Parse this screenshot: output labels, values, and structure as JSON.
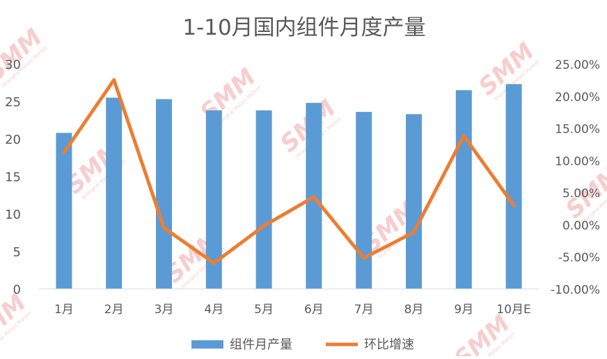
{
  "chart_data": {
    "type": "bar",
    "title": "1-10月国内组件月度产量",
    "categories": [
      "1月",
      "2月",
      "3月",
      "4月",
      "5月",
      "6月",
      "7月",
      "8月",
      "9月",
      "10月E"
    ],
    "series": [
      {
        "name": "组件月产量",
        "type": "bar",
        "axis": "left",
        "color": "#5B9BD5",
        "values": [
          20.8,
          25.5,
          25.3,
          23.8,
          23.8,
          24.8,
          23.6,
          23.3,
          26.5,
          27.3
        ]
      },
      {
        "name": "环比增速",
        "type": "line",
        "axis": "right",
        "color": "#ED7D31",
        "values": [
          0.112,
          0.225,
          -0.005,
          -0.06,
          -0.002,
          0.043,
          -0.052,
          -0.012,
          0.138,
          0.03
        ]
      }
    ],
    "left_axis": {
      "min": 0,
      "max": 30,
      "ticks": [
        {
          "value": 0,
          "label": "0"
        },
        {
          "value": 5,
          "label": "5"
        },
        {
          "value": 10,
          "label": "10"
        },
        {
          "value": 15,
          "label": "15"
        },
        {
          "value": 20,
          "label": "20"
        },
        {
          "value": 25,
          "label": "25"
        },
        {
          "value": 30,
          "label": "30"
        }
      ]
    },
    "right_axis": {
      "min": -0.1,
      "max": 0.25,
      "ticks": [
        {
          "value": -0.1,
          "label": "-10.00%"
        },
        {
          "value": -0.05,
          "label": "-5.00%"
        },
        {
          "value": 0,
          "label": "0.00%"
        },
        {
          "value": 0.05,
          "label": "5.00%"
        },
        {
          "value": 0.1,
          "label": "10.00%"
        },
        {
          "value": 0.15,
          "label": "15.00%"
        },
        {
          "value": 0.2,
          "label": "20.00%"
        },
        {
          "value": 0.25,
          "label": "25.00%"
        }
      ]
    },
    "grid": false,
    "legend_position": "bottom"
  },
  "watermark": {
    "logo_text": "SMM",
    "sub_text": "Shanghai Metals Market",
    "color": "#F4A6A6"
  }
}
